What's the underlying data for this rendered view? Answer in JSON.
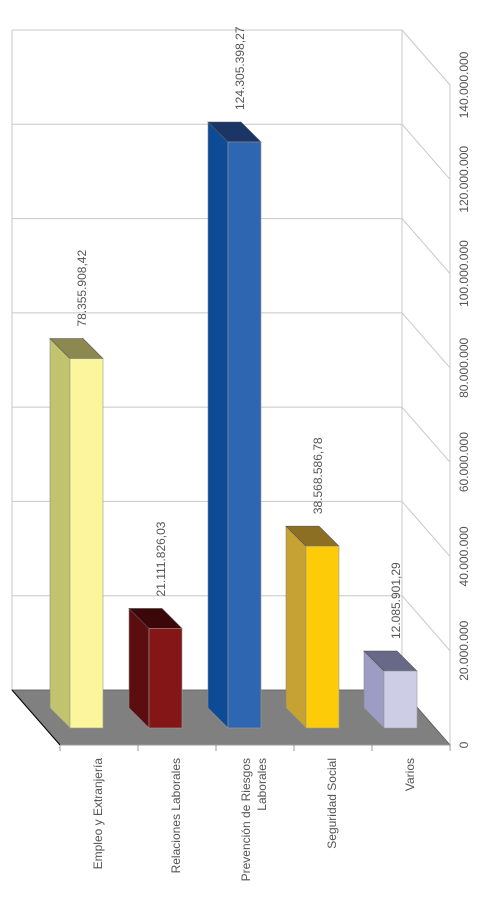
{
  "chart_data": {
    "type": "bar",
    "orientation": "vertical-3d-rotated",
    "title": "",
    "xlabel": "",
    "ylabel": "",
    "categories": [
      "Empleo y  Extranjería",
      "Relaciones Laborales",
      "Prevención de Riesgos Laborales",
      "Seguridad Social",
      "Varios"
    ],
    "category_lines": [
      [
        "Empleo y  Extranjería"
      ],
      [
        "Relaciones Laborales"
      ],
      [
        "Prevención de Riesgos",
        "Laborales"
      ],
      [
        "Seguridad Social"
      ],
      [
        "Varios"
      ]
    ],
    "values": [
      78355908.42,
      21111826.03,
      124305398.27,
      38568586.78,
      12085901.29
    ],
    "value_labels": [
      "78.355.908,42",
      "21.111.826,03",
      "124.305.398,27",
      "38.568.586,78",
      "12.085.901,29"
    ],
    "ylim": [
      0,
      140000000
    ],
    "ticks": [
      0,
      20000000,
      40000000,
      60000000,
      80000000,
      100000000,
      120000000,
      140000000
    ],
    "tick_labels": [
      "0",
      "20.000.000",
      "40.000.000",
      "60.000.000",
      "80.000.000",
      "100.000.000",
      "120.000.000",
      "140.000.000"
    ],
    "grid": true,
    "legend": "none",
    "colors": {
      "bars": [
        {
          "front": "#FBF59B",
          "side": "#C2C36E",
          "top": "#8B8850"
        },
        {
          "front": "#841618",
          "side": "#5B0D0F",
          "top": "#3C0709"
        },
        {
          "front": "#2E66B2",
          "side": "#0E4B97",
          "top": "#1B3566"
        },
        {
          "front": "#FECB09",
          "side": "#C5A231",
          "top": "#8C6F22"
        },
        {
          "front": "#CDCDE6",
          "side": "#9C9CC5",
          "top": "#686888"
        }
      ],
      "floor": "#808080",
      "grid": "#C8C8C8",
      "text": "#555555"
    }
  }
}
